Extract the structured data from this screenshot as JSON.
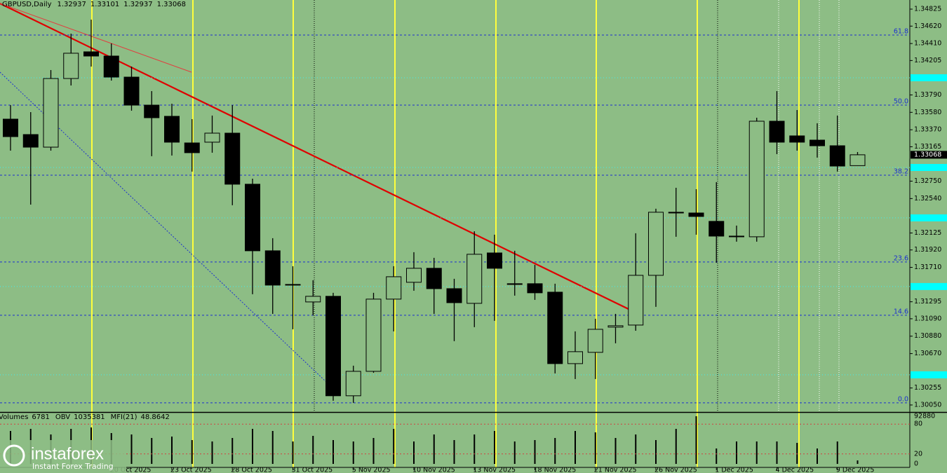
{
  "chart_data": {
    "type": "candlestick",
    "title": "GBPUSD,Daily",
    "categories": [
      null,
      null,
      null,
      null,
      null,
      "20 Oct 2025",
      null,
      null,
      "23 Oct 2025",
      null,
      null,
      "28 Oct 2025",
      null,
      null,
      "31 Oct 2025",
      null,
      null,
      "5 Nov 2025",
      null,
      null,
      "10 Nov 2025",
      null,
      null,
      "13 Nov 2025",
      null,
      null,
      "18 Nov 2025",
      null,
      null,
      "21 Nov 2025",
      null,
      null,
      "26 Nov 2025",
      null,
      null,
      "1 Dec 2025",
      null,
      null,
      "4 Dec 2025",
      null,
      null,
      "9 Dec 2025",
      null
    ],
    "open": [
      1.33498,
      1.33312,
      1.3316,
      1.33988,
      1.3431,
      1.34259,
      1.34005,
      1.33667,
      1.33532,
      1.33211,
      1.3322,
      1.33329,
      1.32713,
      1.3191,
      1.31504,
      1.31293,
      1.31361,
      1.30161,
      1.30456,
      1.31327,
      1.3153,
      1.31699,
      1.31453,
      1.31276,
      1.31884,
      1.31513,
      1.31513,
      1.31411,
      1.30549,
      1.30685,
      1.30989,
      1.31014,
      1.31614,
      1.32375,
      1.32366,
      1.32265,
      1.32087,
      1.32079,
      1.33473,
      1.33296,
      1.33245,
      1.33177,
      1.32937
    ],
    "high": [
      1.33667,
      1.33583,
      1.3409,
      1.34529,
      1.34698,
      1.34411,
      1.34132,
      1.33836,
      1.33684,
      1.33498,
      1.33541,
      1.33667,
      1.3278,
      1.32062,
      1.31724,
      1.31555,
      1.31403,
      1.30524,
      1.31403,
      1.31724,
      1.31893,
      1.31825,
      1.31572,
      1.32146,
      1.32104,
      1.3191,
      1.31741,
      1.31513,
      1.30938,
      1.3109,
      1.31149,
      1.32121,
      1.32417,
      1.3267,
      1.32653,
      1.32738,
      1.32214,
      1.33515,
      1.33836,
      1.33608,
      1.33448,
      1.33541,
      1.33101
    ],
    "low": [
      1.33118,
      1.32467,
      1.33118,
      1.33904,
      1.34132,
      1.33963,
      1.336,
      1.33051,
      1.33059,
      1.32865,
      1.33093,
      1.32459,
      1.31386,
      1.31149,
      1.30963,
      1.31132,
      1.30101,
      1.30076,
      1.30439,
      1.30938,
      1.31428,
      1.31149,
      1.3082,
      1.30989,
      1.31065,
      1.31369,
      1.31318,
      1.30431,
      1.30363,
      1.30363,
      1.30794,
      1.30946,
      1.31234,
      1.32079,
      1.32104,
      1.31766,
      1.3202,
      1.3202,
      1.33076,
      1.33118,
      1.33034,
      1.32865,
      1.32937
    ],
    "close": [
      1.33287,
      1.3316,
      1.33988,
      1.34293,
      1.34259,
      1.34005,
      1.33667,
      1.33515,
      1.3322,
      1.33093,
      1.33329,
      1.32713,
      1.3191,
      1.31496,
      1.31496,
      1.31361,
      1.30161,
      1.30456,
      1.31327,
      1.31597,
      1.31699,
      1.31453,
      1.31284,
      1.31868,
      1.31699,
      1.31504,
      1.31403,
      1.30549,
      1.30693,
      1.30963,
      1.31006,
      1.31614,
      1.32375,
      1.32366,
      1.32324,
      1.32087,
      1.32079,
      1.33473,
      1.3322,
      1.3322,
      1.33177,
      1.32932,
      1.33068
    ],
    "up_color": "#8dbd85",
    "down_color": "#000000",
    "ylim": [
      1.29965,
      1.34935
    ],
    "yticks": [
      1.34825,
      {
        "value": 1.3462,
        "label": "1.34620"
      },
      {
        "value": 1.3441,
        "label": "1.34410"
      },
      1.34205,
      {
        "value": 1.3379,
        "label": "1.33790"
      },
      {
        "value": 1.3358,
        "label": "1.33580"
      },
      {
        "value": 1.3337,
        "label": "1.33370"
      },
      1.33165,
      {
        "value": 1.3275,
        "label": "1.32750"
      },
      {
        "value": 1.3254,
        "label": "1.32540"
      },
      1.32125,
      {
        "value": 1.3192,
        "label": "1.31920"
      },
      {
        "value": 1.3171,
        "label": "1.31710"
      },
      1.31295,
      {
        "value": 1.3109,
        "label": "1.31090"
      },
      {
        "value": 1.3088,
        "label": "1.30880"
      },
      {
        "value": 1.3067,
        "label": "1.30670"
      },
      1.30255,
      {
        "value": 1.3005,
        "label": "1.30050"
      }
    ],
    "fib_levels": {
      "labels": [
        "61.8",
        "50.0",
        "38.2",
        "23.6",
        "14.6",
        "0.0"
      ],
      "prices": [
        1.34512,
        1.33667,
        1.32822,
        1.31775,
        1.31132,
        1.30076
      ]
    },
    "alert_levels": [
      1.33997,
      1.32915,
      1.32307,
      1.31479,
      1.30414
    ],
    "volume_label": "Volumes",
    "volumes": [
      64200,
      68300,
      57370,
      68300,
      71030,
      60100,
      57370,
      50540,
      53270,
      46440,
      43710,
      50540,
      68300,
      64200,
      43710,
      54640,
      46440,
      43710,
      50540,
      68300,
      43710,
      57370,
      46440,
      57370,
      64200,
      43710,
      46440,
      50540,
      64200,
      61470,
      50540,
      57370,
      46440,
      68300,
      92880,
      30050,
      43710,
      43710,
      43710,
      40980,
      30050,
      43710,
      6781
    ],
    "volume_ylim": [
      0,
      92880
    ],
    "volume_yticks": [
      92880
    ],
    "obv_label": "OBV",
    "obv": 1035381,
    "mfi_label": "MFI(21)",
    "mfi": 48.8642,
    "mfi_ylim": [
      0,
      100
    ],
    "mfi_yticks": [
      80,
      20,
      0
    ],
    "watermark": {
      "brand": "instaforex",
      "tagline": "Instant Forex Trading"
    }
  }
}
